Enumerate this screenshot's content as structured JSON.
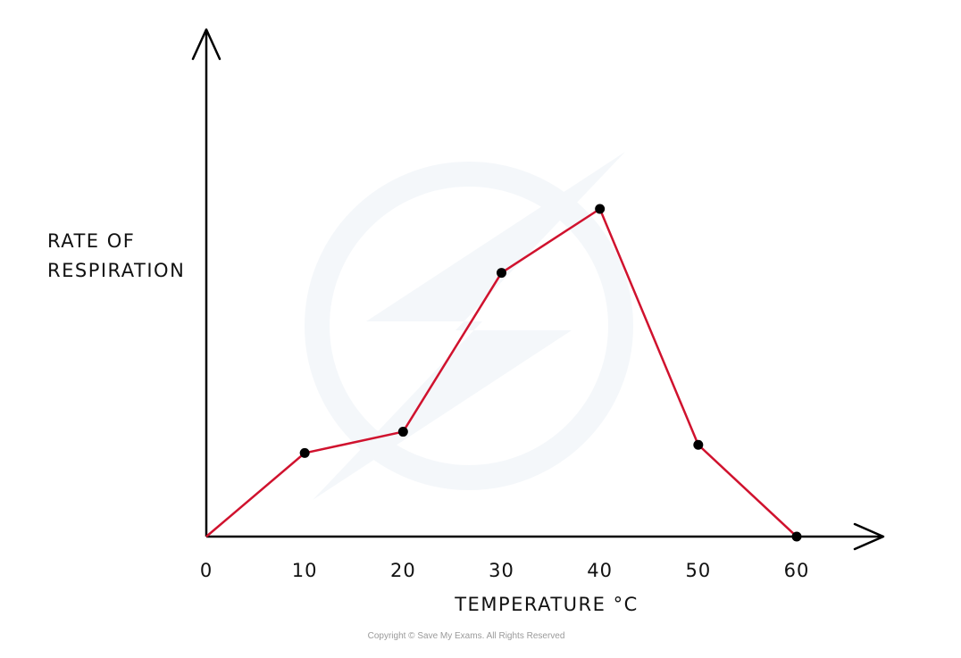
{
  "chart_data": {
    "type": "line",
    "xlabel": "TEMPERATURE °C",
    "ylabel_lines": [
      "RATE OF",
      "RESPIRATION"
    ],
    "x_ticks": [
      "0",
      "10",
      "20",
      "30",
      "40",
      "50",
      "60"
    ],
    "x": [
      0,
      10,
      20,
      30,
      40,
      50,
      60
    ],
    "series": [
      {
        "values": [
          0,
          2.55,
          3.2,
          8.05,
          10.0,
          2.8,
          0
        ]
      }
    ],
    "xlim": [
      0,
      60
    ],
    "ylim": [
      0,
      10
    ],
    "y_ticks_shown": false,
    "grid": false,
    "legend": "none",
    "line_color": "#d0122e",
    "marker_color": "#000000",
    "axis_color": "#000000"
  },
  "footer": {
    "copyright": "Copyright © Save My Exams. All Rights Reserved"
  }
}
